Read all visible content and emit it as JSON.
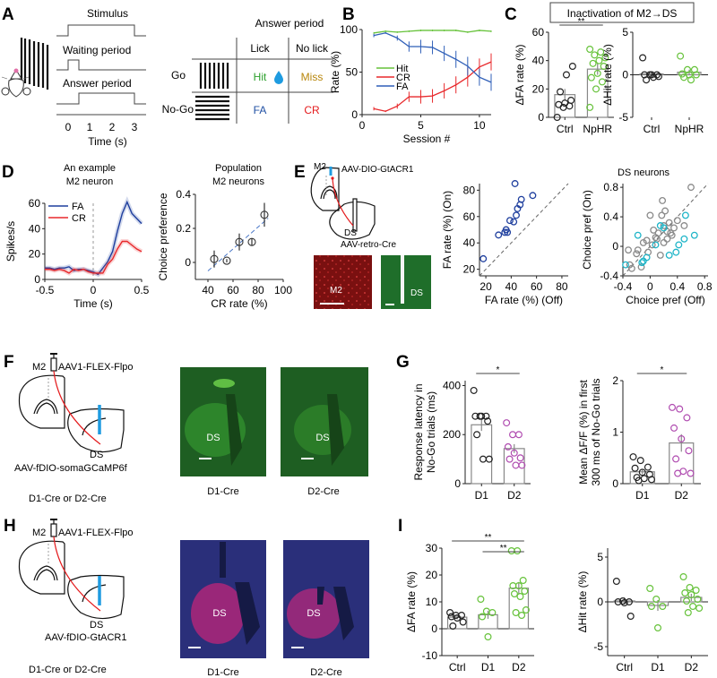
{
  "panels": {
    "A": {
      "label": "A",
      "timeline": {
        "rows": [
          "Stimulus",
          "Waiting period",
          "Answer period"
        ],
        "xticks": [
          "0",
          "1",
          "2",
          "3"
        ],
        "xlabel": "Time (s)"
      },
      "table": {
        "title": "Answer period",
        "cols": [
          "Lick",
          "No lick"
        ],
        "rows": [
          "Go",
          "No-Go"
        ],
        "cells": [
          [
            "Hit",
            "Miss"
          ],
          [
            "FA",
            "CR"
          ]
        ],
        "colors": {
          "Hit": "#2ca02c",
          "Miss": "#b8860b",
          "FA": "#1f4fa3",
          "CR": "#e41a1c",
          "drop": "#1e9be0"
        }
      }
    },
    "B": {
      "label": "B"
    },
    "C": {
      "label": "C",
      "title": "Inactivation of M2→DS"
    },
    "D": {
      "label": "D",
      "left_title": [
        "An example",
        "M2 neuron"
      ],
      "right_title": [
        "Population",
        "M2 neurons"
      ]
    },
    "E": {
      "label": "E",
      "schematic": {
        "m2": "M2",
        "virus_top": "AAV-DIO-GtACR1",
        "ds": "DS",
        "virus_bottom": "AAV-retro-Cre"
      },
      "images": [
        "M2",
        "DS"
      ],
      "right_title": "DS neurons"
    },
    "F": {
      "label": "F",
      "schematic": {
        "m2": "M2",
        "virus_top": "AAV1-FLEX-Flpo",
        "ds": "DS",
        "virus_bottom": "AAV-fDIO-somaGCaMP6f",
        "mice": "D1-Cre or D2-Cre"
      },
      "images": [
        {
          "label": "DS",
          "caption": "D1-Cre"
        },
        {
          "label": "DS",
          "caption": "D2-Cre"
        }
      ]
    },
    "G": {
      "label": "G"
    },
    "H": {
      "label": "H",
      "schematic": {
        "m2": "M2",
        "virus_top": "AAV1-FLEX-Flpo",
        "ds": "DS",
        "virus_bottom": "AAV-fDIO-GtACR1",
        "mice": "D1-Cre or D2-Cre"
      },
      "images": [
        {
          "label": "DS",
          "caption": "D1-Cre"
        },
        {
          "label": "DS",
          "caption": "D2-Cre"
        }
      ]
    },
    "I": {
      "label": "I"
    }
  },
  "chart_data": [
    {
      "id": "B",
      "type": "line",
      "xlabel": "Session #",
      "ylabel": "Rate (%)",
      "xlim": [
        0,
        11
      ],
      "ylim": [
        0,
        100
      ],
      "xticks": [
        0,
        5,
        10
      ],
      "yticks": [
        0,
        50,
        100
      ],
      "legend": "center-left",
      "x": [
        1,
        2,
        3,
        4,
        5,
        6,
        7,
        8,
        9,
        10,
        11
      ],
      "series": [
        {
          "name": "Hit",
          "color": "#66c23a",
          "values": [
            96,
            98,
            97,
            98,
            99,
            99,
            99,
            99,
            97,
            99,
            98
          ],
          "err": [
            1,
            1,
            1,
            1,
            1,
            1,
            1,
            1,
            1,
            1,
            1
          ]
        },
        {
          "name": "CR",
          "color": "#e8282b",
          "values": [
            7,
            4,
            10,
            21,
            21,
            22,
            28,
            35,
            44,
            56,
            62
          ],
          "err": [
            2,
            1,
            3,
            6,
            8,
            8,
            9,
            10,
            11,
            10,
            10
          ]
        },
        {
          "name": "FA",
          "color": "#2f5fb8",
          "values": [
            93,
            96,
            90,
            80,
            80,
            79,
            72,
            65,
            57,
            44,
            38
          ],
          "err": [
            2,
            1,
            3,
            6,
            8,
            8,
            9,
            10,
            11,
            10,
            10
          ]
        }
      ]
    },
    {
      "id": "C-left",
      "type": "bar",
      "ylabel": "ΔFA rate (%)",
      "ylim": [
        0,
        60
      ],
      "yticks": [
        0,
        20,
        40,
        60
      ],
      "categories": [
        "Ctrl",
        "NpHR"
      ],
      "values": [
        16,
        34
      ],
      "sem": [
        4,
        4
      ],
      "colors": [
        "#222222",
        "#66c23a"
      ],
      "points": [
        [
          0,
          7,
          8,
          9,
          10,
          12,
          18,
          30,
          36
        ],
        [
          7,
          20,
          25,
          28,
          31,
          36,
          38,
          40,
          42,
          44,
          46,
          48
        ]
      ],
      "significance": [
        {
          "from": 0,
          "to": 1,
          "label": "**"
        }
      ]
    },
    {
      "id": "C-right",
      "type": "bar",
      "ylabel": "ΔHit rate (%)",
      "ylim": [
        -5,
        5
      ],
      "yticks": [
        -5,
        0,
        5
      ],
      "categories": [
        "Ctrl",
        "NpHR"
      ],
      "values": [
        0.1,
        0.3
      ],
      "sem": [
        0.3,
        0.3
      ],
      "colors": [
        "#222222",
        "#66c23a"
      ],
      "points": [
        [
          2,
          0,
          0,
          0,
          0,
          -0.2,
          -0.6,
          -0.3
        ],
        [
          2.2,
          0.6,
          0.6,
          0.1,
          0,
          0,
          -0.3,
          -0.6
        ]
      ]
    },
    {
      "id": "D-left",
      "type": "line",
      "xlabel": "Time (s)",
      "ylabel": "Spikes/s",
      "xlim": [
        -0.5,
        0.5
      ],
      "ylim": [
        0,
        60
      ],
      "xticks": [
        -0.5,
        0,
        0.5
      ],
      "yticks": [
        0,
        20,
        40,
        60
      ],
      "legend": "top-left",
      "x": [
        -0.5,
        -0.45,
        -0.4,
        -0.35,
        -0.3,
        -0.25,
        -0.2,
        -0.15,
        -0.1,
        -0.05,
        0,
        0.05,
        0.1,
        0.15,
        0.2,
        0.25,
        0.3,
        0.35,
        0.4,
        0.45,
        0.5
      ],
      "series": [
        {
          "name": "FA",
          "color": "#1f3f9e",
          "values": [
            9,
            9,
            8,
            9,
            9,
            10,
            7,
            8,
            8,
            7,
            6,
            4,
            9,
            14,
            22,
            38,
            52,
            61,
            52,
            48,
            44
          ]
        },
        {
          "name": "CR",
          "color": "#e8282b",
          "values": [
            8,
            8,
            7,
            8,
            7,
            5,
            8,
            7,
            8,
            6,
            5,
            5,
            5,
            12,
            16,
            24,
            30,
            30,
            27,
            24,
            22
          ]
        }
      ]
    },
    {
      "id": "D-right",
      "type": "scatter",
      "xlabel": "CR rate (%)",
      "ylabel": "Choice preference",
      "xlim": [
        30,
        100
      ],
      "ylim": [
        -0.1,
        0.4
      ],
      "xticks": [
        40,
        60,
        80,
        100
      ],
      "yticks": [
        0,
        0.2,
        0.4
      ],
      "x": [
        45,
        55,
        65,
        75,
        85
      ],
      "y": [
        0.02,
        0.01,
        0.12,
        0.12,
        0.28
      ],
      "err": [
        0.05,
        0.01,
        0.05,
        0.02,
        0.07
      ],
      "fit": {
        "x": [
          40,
          88
        ],
        "y": [
          -0.05,
          0.26
        ],
        "color": "#4a78c8"
      }
    },
    {
      "id": "E-middle",
      "type": "scatter",
      "xlabel": "FA rate (%) (Off)",
      "ylabel": "FA rate (%) (On)",
      "xlim": [
        15,
        85
      ],
      "ylim": [
        15,
        85
      ],
      "xticks": [
        20,
        40,
        60,
        80
      ],
      "yticks": [
        20,
        40,
        60,
        80
      ],
      "color": "#1f3f9e",
      "x": [
        18,
        30,
        35,
        36,
        37,
        39,
        42,
        44,
        45,
        47,
        48,
        43,
        57
      ],
      "y": [
        28,
        46,
        48,
        50,
        48,
        57,
        56,
        61,
        66,
        69,
        73,
        85,
        76
      ],
      "unity": true
    },
    {
      "id": "E-right",
      "type": "scatter",
      "title": "DS neurons",
      "xlabel": "Choice pref (Off)",
      "ylabel": "Choice pref (On)",
      "xlim": [
        -0.4,
        0.85
      ],
      "ylim": [
        -0.4,
        0.85
      ],
      "xticks": [
        -0.4,
        0,
        0.4,
        0.8
      ],
      "yticks": [
        -0.4,
        0,
        0.4,
        0.8
      ],
      "unity": true,
      "series": [
        {
          "name": "gray",
          "color": "#8a8a8a",
          "x": [
            -0.32,
            -0.27,
            -0.3,
            -0.2,
            -0.13,
            -0.1,
            -0.05,
            -0.03,
            0,
            0.03,
            0.05,
            0.1,
            0.12,
            0.15,
            0.17,
            0.2,
            0.2,
            0.22,
            0.25,
            0.25,
            0.28,
            0.3,
            0.32,
            0.35,
            0.4,
            0.5,
            0.6,
            -0.18,
            0.08,
            0.18
          ],
          "y": [
            -0.05,
            -0.3,
            -0.25,
            -0.1,
            -0.28,
            0.05,
            0.08,
            -0.08,
            0.42,
            0.02,
            0.22,
            0.1,
            0.18,
            -0.12,
            0.42,
            0.28,
            0.05,
            0.48,
            0.2,
            0.1,
            0.32,
            0.18,
            0.15,
            0.25,
            0.35,
            0.28,
            0.8,
            -0.05,
            0.12,
            0.62
          ]
        },
        {
          "name": "cyan",
          "color": "#1fb5c8",
          "x": [
            -0.36,
            -0.18,
            -0.12,
            -0.1,
            -0.05,
            0.08,
            0.15,
            0.2,
            0.28,
            0.38,
            0.42,
            0.5,
            0.52,
            0.65
          ],
          "y": [
            -0.25,
            0.15,
            -0.22,
            -0.2,
            -0.15,
            0.02,
            0.28,
            0.25,
            -0.12,
            -0.08,
            0.02,
            0.1,
            0.42,
            0.15
          ]
        }
      ]
    },
    {
      "id": "G-left",
      "type": "bar",
      "ylabel": "Response latency in No-Go trials (ms)",
      "ylabel_lines": [
        "Response latency in",
        "No-Go trials (ms)"
      ],
      "ylim": [
        0,
        420
      ],
      "yticks": [
        0,
        200,
        400
      ],
      "categories": [
        "D1",
        "D2"
      ],
      "values": [
        240,
        143
      ],
      "sem": [
        25,
        18
      ],
      "colors": [
        "#222222",
        "#b04cb0"
      ],
      "points": [
        [
          380,
          275,
          275,
          275,
          275,
          255,
          200,
          100,
          100
        ],
        [
          248,
          200,
          200,
          150,
          125,
          105,
          100,
          75,
          75
        ]
      ],
      "significance": [
        {
          "from": 0,
          "to": 1,
          "label": "*"
        }
      ]
    },
    {
      "id": "G-right",
      "type": "bar",
      "ylabel": "Mean ΔF/F (%) in first 300 ms of No-Go trials",
      "ylabel_lines": [
        "Mean ΔF/F (%) in first",
        "300 ms of No-Go trials"
      ],
      "ylim": [
        0,
        2
      ],
      "yticks": [
        0,
        1,
        2
      ],
      "categories": [
        "D1",
        "D2"
      ],
      "values": [
        0.23,
        0.79
      ],
      "sem": [
        0.05,
        0.17
      ],
      "colors": [
        "#222222",
        "#b04cb0"
      ],
      "points": [
        [
          0.52,
          0.45,
          0.32,
          0.3,
          0.22,
          0.18,
          0.12,
          0.1,
          0.08,
          0.06
        ],
        [
          1.48,
          1.45,
          1.28,
          1.08,
          0.87,
          0.64,
          0.48,
          0.24,
          0.2,
          0.2
        ]
      ],
      "significance": [
        {
          "from": 0,
          "to": 1,
          "label": "*"
        }
      ]
    },
    {
      "id": "I-left",
      "type": "bar",
      "ylabel": "ΔFA rate (%)",
      "ylim": [
        -10,
        30
      ],
      "yticks": [
        -10,
        0,
        10,
        20,
        30
      ],
      "categories": [
        "Ctrl",
        "D1",
        "D2"
      ],
      "values": [
        4.3,
        5.2,
        15.1
      ],
      "sem": [
        0.8,
        1.5,
        2.3
      ],
      "colors": [
        "#222222",
        "#66c23a",
        "#66c23a"
      ],
      "points": [
        [
          6,
          5,
          5,
          4.5,
          4,
          2.5,
          1
        ],
        [
          11,
          6.5,
          6,
          4.5,
          -3
        ],
        [
          29,
          29,
          18,
          16,
          16,
          14,
          13,
          12,
          7,
          6,
          5
        ]
      ],
      "significance": [
        {
          "from": 0,
          "to": 2,
          "label": "**"
        },
        {
          "from": 1,
          "to": 2,
          "label": "**"
        }
      ]
    },
    {
      "id": "I-right",
      "type": "bar",
      "ylabel": "ΔHit rate (%)",
      "ylim": [
        -6,
        6
      ],
      "yticks": [
        -5,
        0,
        5
      ],
      "categories": [
        "Ctrl",
        "D1",
        "D2"
      ],
      "values": [
        0.1,
        -0.4,
        0.5
      ],
      "sem": [
        0.4,
        0.6,
        0.4
      ],
      "colors": [
        "#222222",
        "#66c23a",
        "#66c23a"
      ],
      "points": [
        [
          2.3,
          0.1,
          0,
          0,
          -0.1,
          -1.6
        ],
        [
          1.5,
          0.3,
          -0.5,
          -0.5,
          -2.9
        ],
        [
          2.8,
          1.6,
          1.3,
          1,
          0.8,
          0.3,
          0.1,
          -0.5,
          -0.7,
          -1.2
        ]
      ]
    }
  ]
}
